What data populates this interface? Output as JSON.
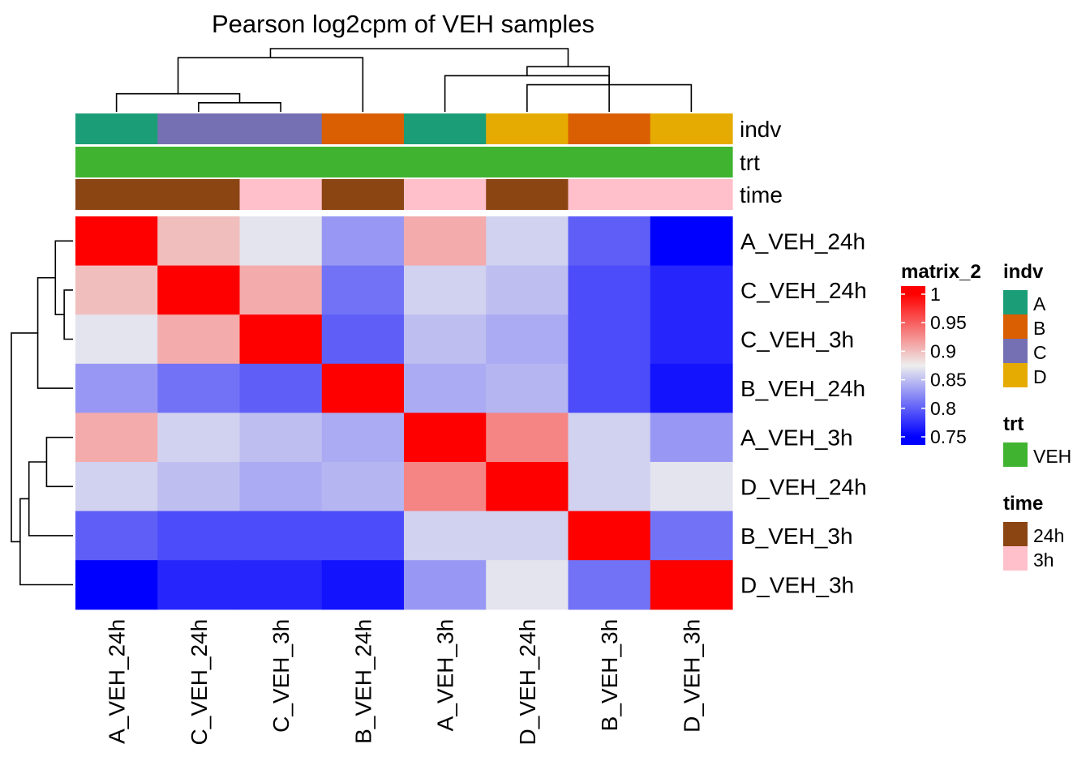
{
  "chart_data": {
    "type": "heatmap",
    "title": "Pearson log2cpm of VEH samples",
    "rows": [
      "A_VEH_24h",
      "C_VEH_24h",
      "C_VEH_3h",
      "B_VEH_24h",
      "A_VEH_3h",
      "D_VEH_24h",
      "B_VEH_3h",
      "D_VEH_3h"
    ],
    "columns": [
      "A_VEH_24h",
      "C_VEH_24h",
      "C_VEH_3h",
      "B_VEH_24h",
      "A_VEH_3h",
      "D_VEH_24h",
      "B_VEH_3h",
      "D_VEH_3h"
    ],
    "values": [
      [
        1.0,
        0.9,
        0.87,
        0.83,
        0.91,
        0.86,
        0.8,
        0.75
      ],
      [
        0.9,
        1.0,
        0.91,
        0.81,
        0.86,
        0.85,
        0.79,
        0.77
      ],
      [
        0.87,
        0.91,
        1.0,
        0.8,
        0.85,
        0.84,
        0.79,
        0.77
      ],
      [
        0.83,
        0.81,
        0.8,
        1.0,
        0.84,
        0.845,
        0.79,
        0.76
      ],
      [
        0.91,
        0.86,
        0.85,
        0.84,
        1.0,
        0.93,
        0.86,
        0.83
      ],
      [
        0.86,
        0.85,
        0.84,
        0.845,
        0.93,
        1.0,
        0.86,
        0.87
      ],
      [
        0.8,
        0.79,
        0.79,
        0.79,
        0.86,
        0.86,
        1.0,
        0.81
      ],
      [
        0.75,
        0.77,
        0.77,
        0.76,
        0.83,
        0.87,
        0.81,
        1.0
      ]
    ],
    "color_scale": {
      "name": "matrix_2",
      "stops": [
        {
          "value": 0.75,
          "color": "#0000FF"
        },
        {
          "value": 0.875,
          "color": "#EEEEEE"
        },
        {
          "value": 1.0,
          "color": "#FF0000"
        }
      ],
      "ticks": [
        {
          "value": 1.0,
          "label": "1"
        },
        {
          "value": 0.95,
          "label": "0.95"
        },
        {
          "value": 0.9,
          "label": "0.9"
        },
        {
          "value": 0.85,
          "label": "0.85"
        },
        {
          "value": 0.8,
          "label": "0.8"
        },
        {
          "value": 0.75,
          "label": "0.75"
        }
      ]
    },
    "annotations": [
      {
        "name": "indv",
        "values": [
          "A",
          "C",
          "C",
          "B",
          "A",
          "D",
          "B",
          "D"
        ]
      },
      {
        "name": "trt",
        "values": [
          "VEH",
          "VEH",
          "VEH",
          "VEH",
          "VEH",
          "VEH",
          "VEH",
          "VEH"
        ]
      },
      {
        "name": "time",
        "values": [
          "24h",
          "24h",
          "3h",
          "24h",
          "3h",
          "24h",
          "3h",
          "3h"
        ]
      }
    ],
    "legends": [
      {
        "title": "indv",
        "entries": [
          {
            "label": "A",
            "color": "#1B9E77"
          },
          {
            "label": "B",
            "color": "#D95F02"
          },
          {
            "label": "C",
            "color": "#7570B3"
          },
          {
            "label": "D",
            "color": "#E6AB02"
          }
        ]
      },
      {
        "title": "trt",
        "entries": [
          {
            "label": "VEH",
            "color": "#40B330"
          }
        ]
      },
      {
        "title": "time",
        "entries": [
          {
            "label": "24h",
            "color": "#8B4513"
          },
          {
            "label": "3h",
            "color": "#FFC0CB"
          }
        ]
      }
    ],
    "column_dendrogram": {
      "leaves": 8,
      "merges": [
        [
          -2,
          -3,
          1
        ],
        [
          -1,
          1,
          2
        ],
        [
          -6,
          -8,
          3
        ],
        [
          -5,
          -7,
          4
        ],
        [
          4,
          3,
          5
        ],
        [
          2,
          -4,
          6
        ],
        [
          6,
          5,
          7
        ]
      ]
    },
    "row_dendrogram": {
      "leaves": 8,
      "merges": [
        [
          -2,
          -3,
          1
        ],
        [
          -1,
          1,
          2
        ],
        [
          -5,
          -6,
          3
        ],
        [
          2,
          -4,
          4
        ],
        [
          3,
          -7,
          5
        ],
        [
          5,
          -8,
          6
        ],
        [
          4,
          6,
          7
        ]
      ]
    }
  }
}
